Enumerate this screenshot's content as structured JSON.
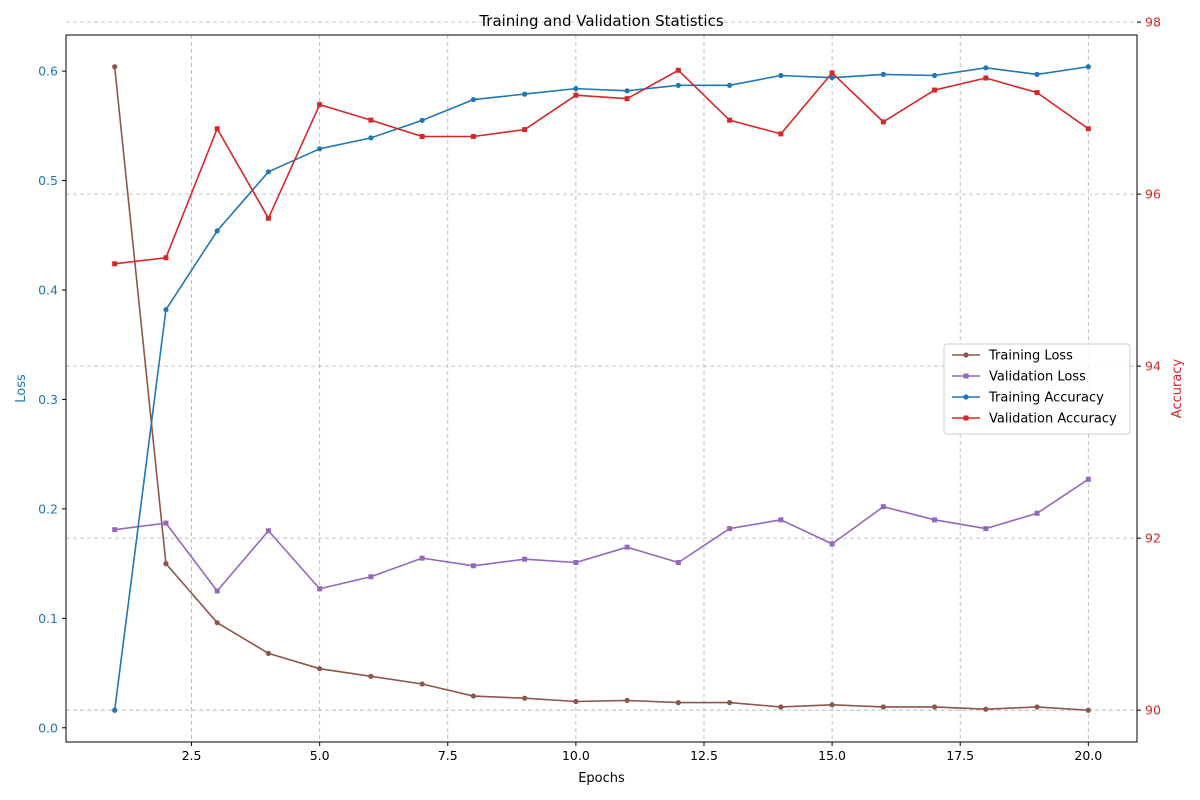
{
  "chart_data": {
    "type": "line",
    "title": "Training and Validation Statistics",
    "xlabel": "Epochs",
    "ylabel_left": "Loss",
    "ylabel_right": "Accuracy",
    "xlim": [
      0.05,
      20.95
    ],
    "ylim_left": [
      -0.013,
      0.633
    ],
    "ylim_right": [
      89.63,
      97.85
    ],
    "x_ticks": [
      2.5,
      5.0,
      7.5,
      10.0,
      12.5,
      15.0,
      17.5,
      20.0
    ],
    "x_tick_labels": [
      "2.5",
      "5.0",
      "7.5",
      "10.0",
      "12.5",
      "15.0",
      "17.5",
      "20.0"
    ],
    "y_left_ticks": [
      0.0,
      0.1,
      0.2,
      0.3,
      0.4,
      0.5,
      0.6
    ],
    "y_left_tick_labels": [
      "0.0",
      "0.1",
      "0.2",
      "0.3",
      "0.4",
      "0.5",
      "0.6"
    ],
    "y_right_ticks": [
      90,
      92,
      94,
      96,
      98
    ],
    "y_right_tick_labels": [
      "90",
      "92",
      "94",
      "96",
      "98"
    ],
    "grid": "dashed",
    "legend_position": "center-right",
    "colors": {
      "left_axis": "#1f77b4",
      "right_axis": "#d62728",
      "grid": "#b0b0b0"
    },
    "x": [
      1,
      2,
      3,
      4,
      5,
      6,
      7,
      8,
      9,
      10,
      11,
      12,
      13,
      14,
      15,
      16,
      17,
      18,
      19,
      20
    ],
    "series": [
      {
        "name": "Training Loss",
        "axis": "left",
        "color": "#8c564b",
        "marker": "circle",
        "values": [
          0.604,
          0.15,
          0.096,
          0.068,
          0.054,
          0.047,
          0.04,
          0.029,
          0.027,
          0.024,
          0.025,
          0.023,
          0.023,
          0.019,
          0.021,
          0.019,
          0.019,
          0.017,
          0.019,
          0.016
        ]
      },
      {
        "name": "Validation Loss",
        "axis": "left",
        "color": "#9467bd",
        "marker": "square",
        "values": [
          0.181,
          0.187,
          0.125,
          0.18,
          0.127,
          0.138,
          0.155,
          0.148,
          0.154,
          0.151,
          0.165,
          0.151,
          0.182,
          0.19,
          0.168,
          0.202,
          0.19,
          0.182,
          0.196,
          0.227
        ]
      },
      {
        "name": "Training Accuracy",
        "axis": "left",
        "color": "#1f77b4",
        "marker": "circle",
        "values": [
          0.016,
          0.382,
          0.454,
          0.508,
          0.529,
          0.539,
          0.555,
          0.574,
          0.579,
          0.584,
          0.582,
          0.587,
          0.587,
          0.596,
          0.594,
          0.597,
          0.596,
          0.603,
          0.597,
          0.604
        ]
      },
      {
        "name": "Validation Accuracy",
        "axis": "right",
        "color": "#d62728",
        "marker": "square",
        "values": [
          95.19,
          95.26,
          96.76,
          95.72,
          97.04,
          96.86,
          96.67,
          96.67,
          96.75,
          97.15,
          97.11,
          97.44,
          96.86,
          96.7,
          97.41,
          96.84,
          97.21,
          97.35,
          97.18,
          96.76
        ]
      }
    ]
  }
}
